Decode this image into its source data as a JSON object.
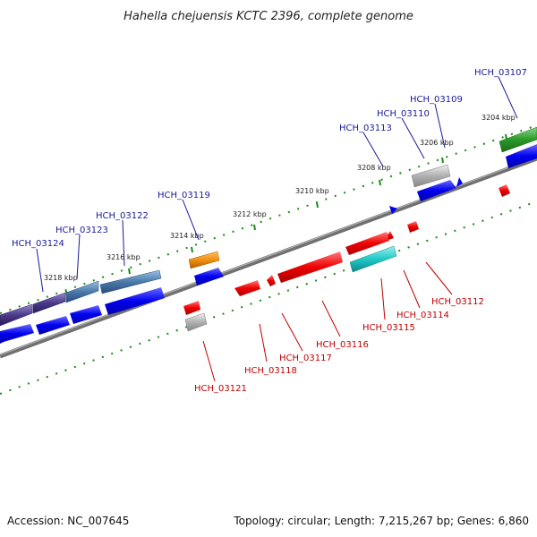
{
  "title": "Hahella chejuensis KCTC 2396, complete genome",
  "footer": {
    "accession": "Accession: NC_007645",
    "topology": "Topology: circular; Length: 7,215,267 bp; Genes: 6,860"
  },
  "ticks": [
    "3204 kbp",
    "3206 kbp",
    "3208 kbp",
    "3210 kbp",
    "3212 kbp",
    "3214 kbp",
    "3216 kbp",
    "3218 kbp"
  ],
  "forward_labels": [
    "HCH_03107",
    "HCH_03109",
    "HCH_03110",
    "HCH_03113",
    "HCH_03119",
    "HCH_03122",
    "HCH_03123",
    "HCH_03124"
  ],
  "reverse_labels": [
    "HCH_03112",
    "HCH_03114",
    "HCH_03115",
    "HCH_03116",
    "HCH_03117",
    "HCH_03118",
    "HCH_03121"
  ],
  "colors": {
    "blue_labels": "#1a1a9a",
    "red_labels": "#c00000",
    "backbone": "#808080",
    "tick_dots": "#1a8a1a",
    "cds_blue": "#0000ee",
    "cds_red": "#ee0000",
    "gene_green": "#2a9a2a",
    "gene_gray": "#b0b0b0",
    "gene_orange": "#f09010",
    "gene_cyan": "#20c8c8",
    "gene_steel": "#4a7aaa",
    "gene_indigo": "#4a3a8a"
  }
}
